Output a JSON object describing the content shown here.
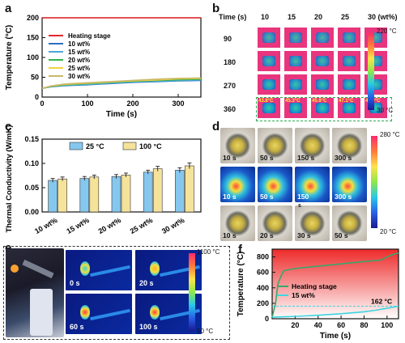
{
  "panels": {
    "a": "a",
    "b": "b",
    "c": "c",
    "d": "d",
    "e": "e",
    "f": "f"
  },
  "colors": {
    "heating": "#e8262b",
    "s10": "#2b6fc0",
    "s15": "#49a8d6",
    "s20": "#34b34a",
    "s25": "#f3d23c",
    "s30": "#c8b86a",
    "bar25": "#86c7ee",
    "bar100": "#f6e39a",
    "thermal_pink": "#e8357d",
    "thermal_dark": "#0a1a6e"
  },
  "chart_data": [
    {
      "panel": "a",
      "type": "line",
      "xlabel": "Time (s)",
      "ylabel": "Temperature (°C)",
      "xlim": [
        0,
        350
      ],
      "ylim": [
        0,
        200
      ],
      "xticks": [
        "0",
        "100",
        "200",
        "300"
      ],
      "yticks": [
        "0",
        "50",
        "100",
        "150",
        "200"
      ],
      "legend_position": "top-left",
      "series": [
        {
          "name": "Heating stage",
          "color": "#e8262b",
          "x": [
            0,
            350
          ],
          "y": [
            200,
            200
          ]
        },
        {
          "name": "10 wt%",
          "color": "#2b6fc0",
          "x": [
            0,
            20,
            50,
            100,
            150,
            200,
            250,
            300,
            350
          ],
          "y": [
            22,
            26,
            29,
            31,
            34,
            37,
            39,
            41,
            42
          ]
        },
        {
          "name": "15 wt%",
          "color": "#49a8d6",
          "x": [
            0,
            20,
            50,
            100,
            150,
            200,
            250,
            300,
            350
          ],
          "y": [
            22,
            27,
            30,
            32,
            35,
            38,
            40,
            42,
            43
          ]
        },
        {
          "name": "20 wt%",
          "color": "#34b34a",
          "x": [
            0,
            20,
            50,
            100,
            150,
            200,
            250,
            300,
            350
          ],
          "y": [
            22,
            27,
            31,
            34,
            37,
            40,
            42,
            44,
            45
          ]
        },
        {
          "name": "25 wt%",
          "color": "#f3d23c",
          "x": [
            0,
            20,
            50,
            100,
            150,
            200,
            250,
            300,
            350
          ],
          "y": [
            22,
            28,
            32,
            35,
            38,
            41,
            43,
            46,
            47
          ]
        },
        {
          "name": "30 wt%",
          "color": "#c8b86a",
          "x": [
            0,
            20,
            50,
            100,
            150,
            200,
            250,
            300,
            350
          ],
          "y": [
            22,
            28,
            33,
            36,
            39,
            42,
            45,
            47,
            48
          ]
        }
      ]
    },
    {
      "panel": "c",
      "type": "bar",
      "xlabel": "",
      "ylabel": "Thermal Conductivity (W/mK)",
      "ylim": [
        0.0,
        0.15
      ],
      "yticks": [
        "0.00",
        "0.05",
        "0.10",
        "0.15"
      ],
      "categories": [
        "10 wt%",
        "15 wt%",
        "20 wt%",
        "25 wt%",
        "30 wt%"
      ],
      "legend_position": "top",
      "series": [
        {
          "name": "25 °C",
          "color": "#86c7ee",
          "values": [
            0.065,
            0.069,
            0.073,
            0.082,
            0.086
          ],
          "errors": [
            0.004,
            0.004,
            0.004,
            0.004,
            0.005
          ]
        },
        {
          "name": "100 °C",
          "color": "#f6e39a",
          "values": [
            0.068,
            0.072,
            0.076,
            0.089,
            0.095
          ],
          "errors": [
            0.004,
            0.004,
            0.004,
            0.005,
            0.006
          ]
        }
      ]
    },
    {
      "panel": "f",
      "type": "line",
      "xlabel": "Time (s)",
      "ylabel": "Temperature (°C)",
      "xlim": [
        0,
        110
      ],
      "ylim": [
        0,
        900
      ],
      "xticks": [
        "20",
        "40",
        "60",
        "80",
        "100"
      ],
      "yticks": [
        "0",
        "200",
        "400",
        "600",
        "800"
      ],
      "annotation": "162 °C",
      "annotation_value": 162,
      "legend_position": "center-left",
      "series": [
        {
          "name": "Heating stage",
          "color": "#3aa66a",
          "x": [
            0,
            3,
            5,
            8,
            10,
            20,
            40,
            60,
            80,
            95,
            100,
            105,
            110
          ],
          "y": [
            20,
            200,
            450,
            560,
            620,
            650,
            680,
            710,
            740,
            760,
            800,
            830,
            850
          ]
        },
        {
          "name": "15 wt%",
          "color": "#3dd6e0",
          "x": [
            0,
            10,
            20,
            40,
            60,
            80,
            90,
            100,
            110
          ],
          "y": [
            20,
            25,
            30,
            45,
            65,
            90,
            110,
            135,
            162
          ]
        }
      ]
    }
  ],
  "panel_b": {
    "time_header": "Time  (s)",
    "col_headers": [
      "10",
      "15",
      "20",
      "25",
      "30 (wt%)"
    ],
    "row_headers": [
      "90",
      "180",
      "270",
      "360"
    ],
    "last_row_values": [
      "43.8°C",
      "45.3°C",
      "45.9°C",
      "47.1°C",
      "48.9°C"
    ],
    "scale_max": "220 °C",
    "scale_min": "30 °C"
  },
  "panel_d": {
    "row1_times": [
      "10 s",
      "50 s",
      "150 s",
      "300 s"
    ],
    "row2_times": [
      "10 s",
      "50 s",
      "150",
      "300 s"
    ],
    "row2_extra": "s",
    "row3_times": [
      "10 s",
      "20 s",
      "30 s",
      "50 s"
    ],
    "scale_max": "280 °C",
    "scale_min": "20 °C"
  },
  "panel_e": {
    "times": [
      "0 s",
      "20 s",
      "60 s",
      "100 s"
    ],
    "scale_max": "1100 °C",
    "scale_min": "50 °C"
  }
}
